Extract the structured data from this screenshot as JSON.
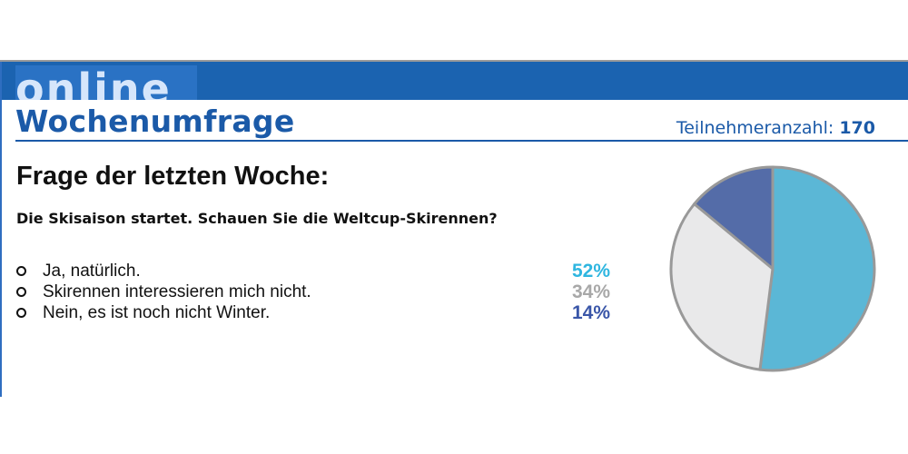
{
  "header": {
    "brand": "online",
    "title": "Wochenumfrage",
    "participants_label": "Teilnehmeranzahl:",
    "participants_value": "170"
  },
  "poll": {
    "heading": "Frage der letzten Woche:",
    "question": "Die Skisaison startet. Schauen Sie die Weltcup-Skirennen?",
    "options": [
      {
        "label": "Ja, natürlich.",
        "percent": "52%",
        "color": "#2fb6e0"
      },
      {
        "label": "Skirennen interessieren mich nicht.",
        "percent": "34%",
        "color": "#a8a8a8"
      },
      {
        "label": "Nein, es ist noch nicht Winter.",
        "percent": "14%",
        "color": "#3a56a8"
      }
    ]
  },
  "chart_data": {
    "type": "pie",
    "categories": [
      "Ja, natürlich.",
      "Skirennen interessieren mich nicht.",
      "Nein, es ist noch nicht Winter."
    ],
    "values": [
      52,
      34,
      14
    ],
    "colors": [
      "#5bb7d6",
      "#e9e9ea",
      "#546ca8"
    ],
    "start": "top",
    "direction": "clockwise"
  }
}
